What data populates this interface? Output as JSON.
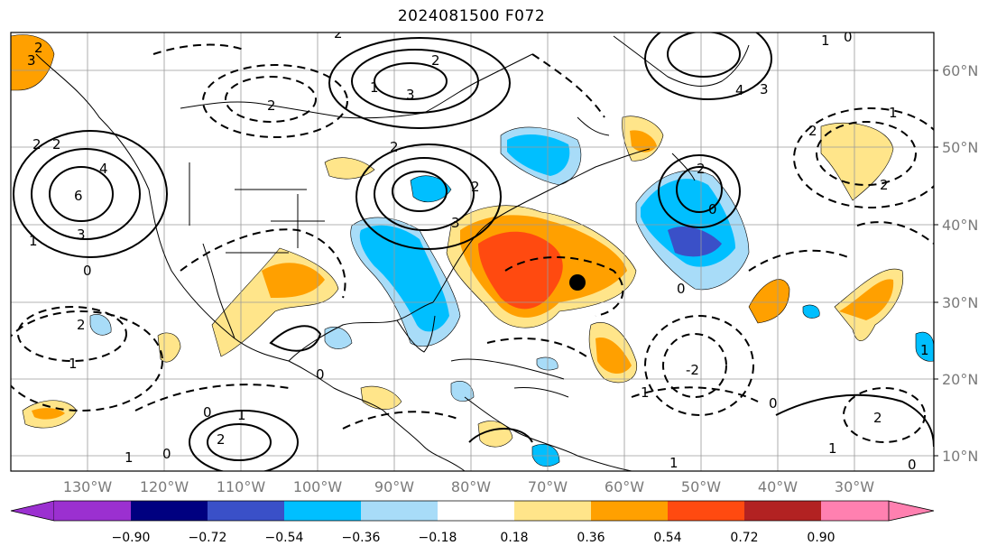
{
  "title": "2024081500 F072",
  "map": {
    "lat_labels": [
      "60°N",
      "50°N",
      "40°N",
      "30°N",
      "20°N",
      "10°N"
    ],
    "lon_labels": [
      "130°W",
      "120°W",
      "110°W",
      "100°W",
      "90°W",
      "80°W",
      "70°W",
      "60°W",
      "50°W",
      "40°W",
      "30°W"
    ],
    "marker": "black-dot",
    "contour_labels": [
      "2",
      "3",
      "2",
      "2",
      "4",
      "6",
      "1",
      "3",
      "1",
      "0",
      "2",
      "2",
      "3",
      "2",
      "4",
      "3",
      "1",
      "0",
      "2",
      "2",
      "3",
      "2",
      "0",
      "2",
      "0",
      "1",
      "2",
      "1",
      "0",
      "1",
      "0",
      "1",
      "-2",
      "0",
      "1",
      "2",
      "1",
      "2",
      "1",
      "0",
      "0",
      "1",
      "2"
    ]
  },
  "colorbar": {
    "ticks": [
      "−0.90",
      "−0.72",
      "−0.54",
      "−0.36",
      "−0.18",
      "0.18",
      "0.36",
      "0.54",
      "0.72",
      "0.90"
    ],
    "colors": [
      "#9b30d0",
      "#000080",
      "#3a50c8",
      "#00bfff",
      "#a8dcf8",
      "#ffffff",
      "#ffe58a",
      "#ffa000",
      "#ff4a10",
      "#b22222",
      "#ff80b0"
    ]
  }
}
